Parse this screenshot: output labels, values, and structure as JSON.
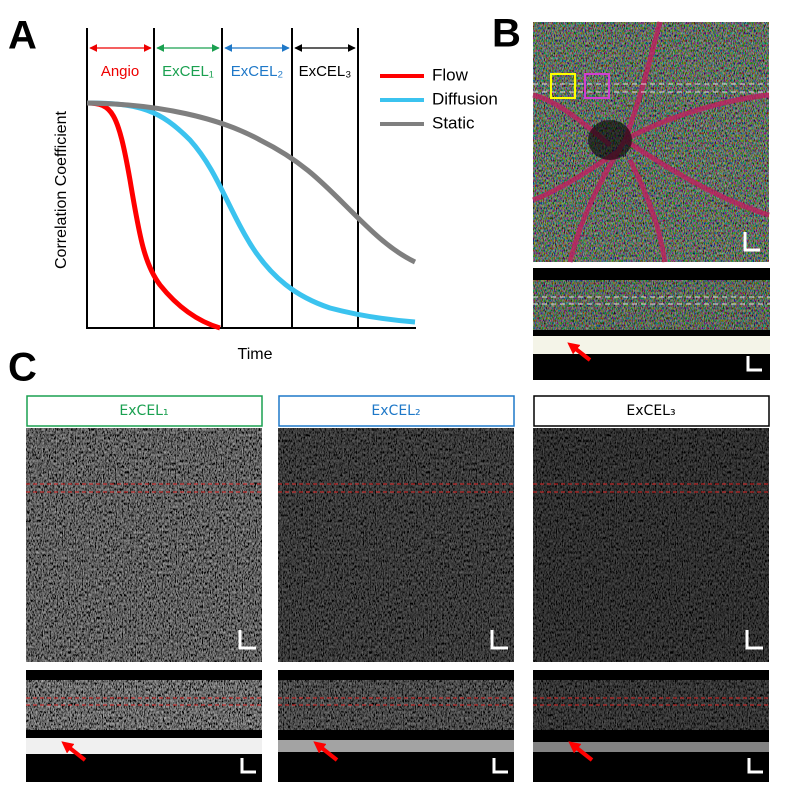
{
  "panels": {
    "a": {
      "label": "A",
      "y_axis_label": "Correlation Coefficient",
      "x_axis_label": "Time",
      "regions": [
        "Angio",
        "ExCEL₁",
        "ExCEL₂",
        "ExCEL₃"
      ],
      "legend": [
        "Flow",
        "Diffusion",
        "Static"
      ]
    },
    "b": {
      "label": "B"
    },
    "c": {
      "label": "C",
      "columns": [
        "ExCEL₁",
        "ExCEL₂",
        "ExCEL₃"
      ]
    }
  }
}
